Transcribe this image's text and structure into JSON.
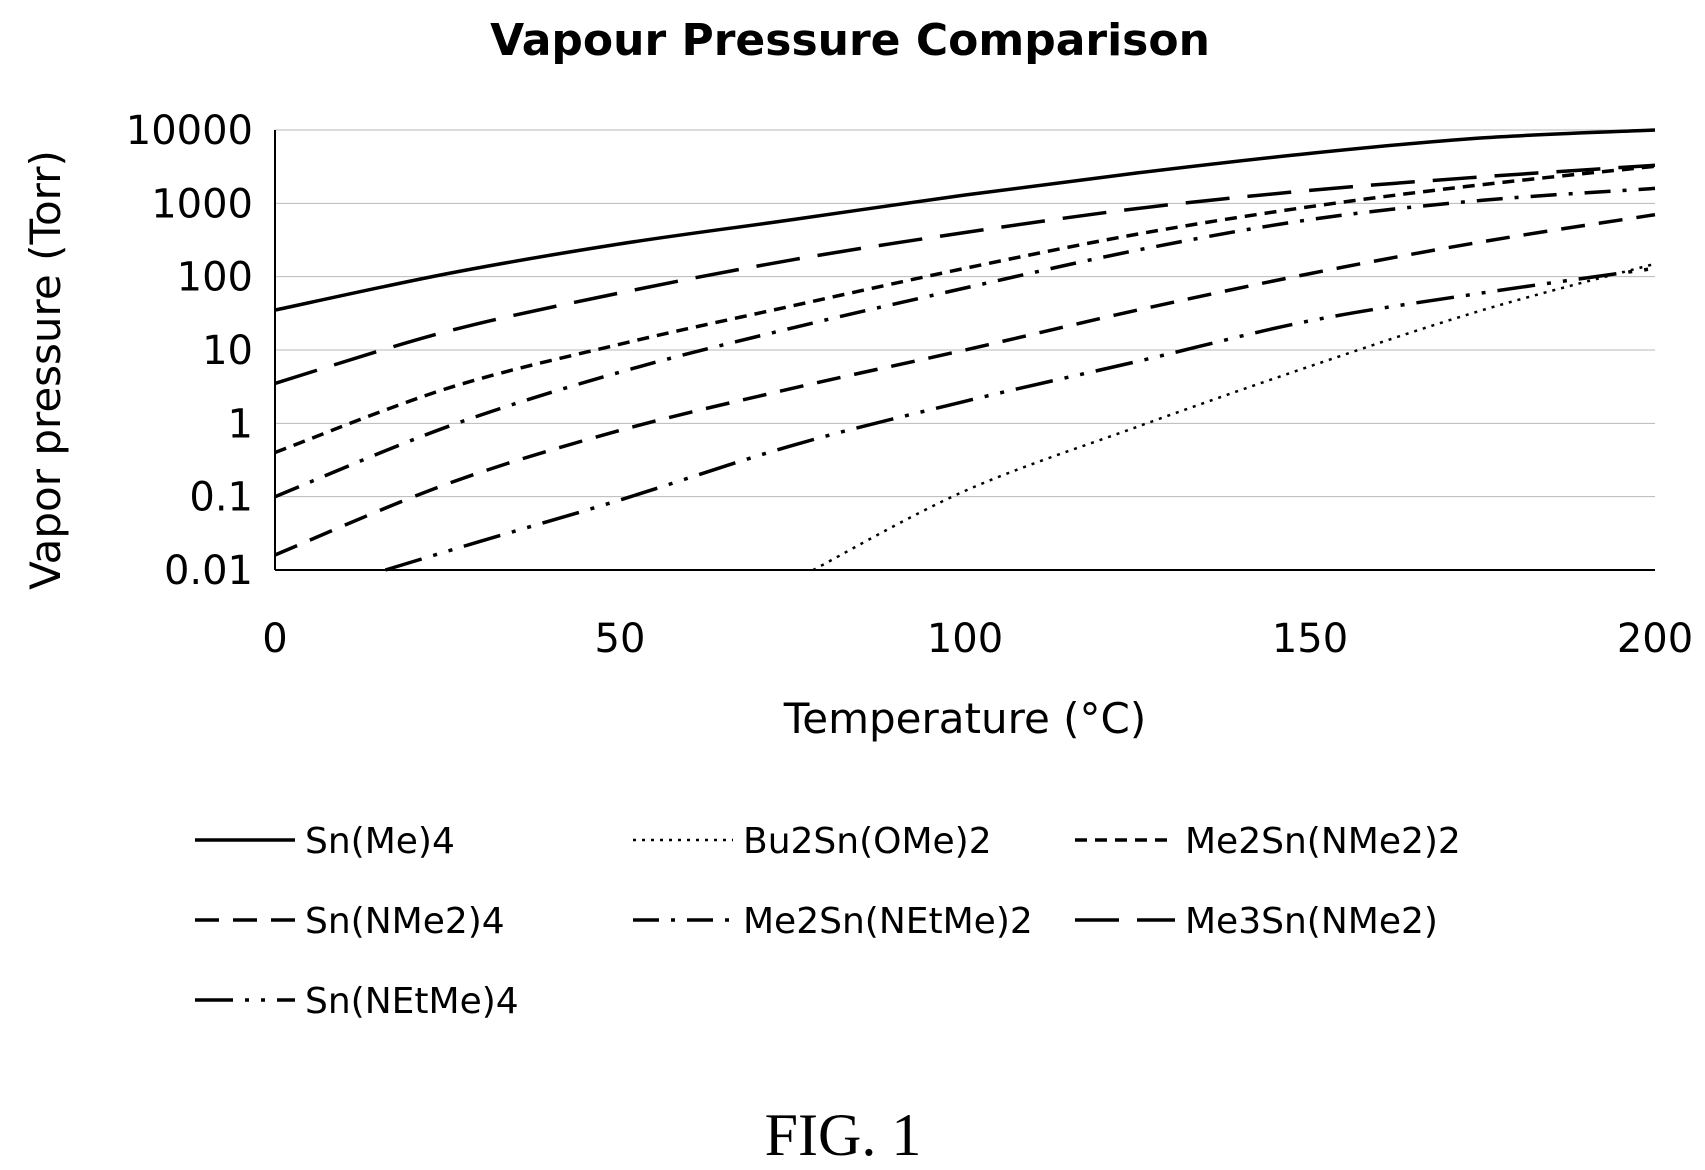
{
  "figure": {
    "caption": "FIG. 1"
  },
  "chart_data": {
    "type": "line",
    "title": "Vapour Pressure Comparison",
    "xlabel": "Temperature (°C)",
    "ylabel": "Vapor pressure (Torr)",
    "xlim": [
      0,
      200
    ],
    "ylim": [
      0.01,
      10000
    ],
    "yscale": "log",
    "x_ticks": [
      "0",
      "50",
      "100",
      "150",
      "200"
    ],
    "y_ticks": [
      "0.01",
      "0.1",
      "1",
      "10",
      "100",
      "1000",
      "10000"
    ],
    "grid": "horizontal",
    "legend_position": "bottom",
    "series": [
      {
        "name": "Sn(Me)4",
        "line_style": "solid",
        "points": [
          [
            0,
            35
          ],
          [
            25,
            110
          ],
          [
            50,
            280
          ],
          [
            75,
            600
          ],
          [
            100,
            1300
          ],
          [
            125,
            2600
          ],
          [
            150,
            4800
          ],
          [
            175,
            7800
          ],
          [
            200,
            10000
          ]
        ]
      },
      {
        "name": "Bu2Sn(OMe)2",
        "line_style": "dotted",
        "points": [
          [
            78,
            0.01
          ],
          [
            100,
            0.12
          ],
          [
            125,
            0.9
          ],
          [
            150,
            6
          ],
          [
            175,
            35
          ],
          [
            200,
            150
          ]
        ]
      },
      {
        "name": "Me2Sn(NMe2)2",
        "line_style": "short-dash",
        "points": [
          [
            0,
            0.4
          ],
          [
            25,
            3
          ],
          [
            50,
            12
          ],
          [
            75,
            40
          ],
          [
            100,
            130
          ],
          [
            125,
            380
          ],
          [
            150,
            900
          ],
          [
            175,
            1800
          ],
          [
            200,
            3200
          ]
        ]
      },
      {
        "name": "Sn(NMe2)4",
        "line_style": "dash",
        "points": [
          [
            0,
            0.016
          ],
          [
            25,
            0.15
          ],
          [
            50,
            0.8
          ],
          [
            75,
            3
          ],
          [
            100,
            10
          ],
          [
            125,
            35
          ],
          [
            150,
            110
          ],
          [
            175,
            300
          ],
          [
            200,
            700
          ]
        ]
      },
      {
        "name": "Me2Sn(NEtMe)2",
        "line_style": "dash-dot",
        "points": [
          [
            0,
            0.1
          ],
          [
            25,
            0.9
          ],
          [
            50,
            5
          ],
          [
            75,
            20
          ],
          [
            100,
            70
          ],
          [
            125,
            230
          ],
          [
            150,
            600
          ],
          [
            175,
            1100
          ],
          [
            200,
            1600
          ]
        ]
      },
      {
        "name": "Me3Sn(NMe2)",
        "line_style": "long-dash",
        "points": [
          [
            0,
            3.5
          ],
          [
            25,
            18
          ],
          [
            50,
            60
          ],
          [
            75,
            170
          ],
          [
            100,
            400
          ],
          [
            125,
            850
          ],
          [
            150,
            1500
          ],
          [
            175,
            2300
          ],
          [
            200,
            3300
          ]
        ]
      },
      {
        "name": "Sn(NEtMe)4",
        "line_style": "dash-dot-dot",
        "points": [
          [
            16,
            0.01
          ],
          [
            30,
            0.025
          ],
          [
            50,
            0.09
          ],
          [
            75,
            0.5
          ],
          [
            100,
            2
          ],
          [
            125,
            7
          ],
          [
            150,
            25
          ],
          [
            175,
            60
          ],
          [
            200,
            130
          ]
        ]
      }
    ]
  }
}
